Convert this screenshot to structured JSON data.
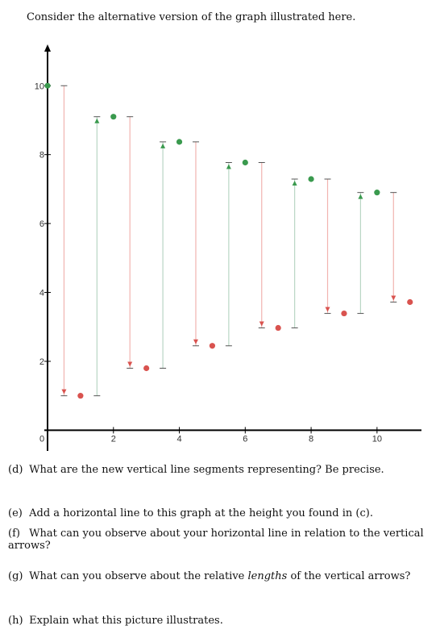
{
  "intro": "Consider the alternative version of the graph illustrated here.",
  "questions": [
    {
      "label": "(d)",
      "text": "What are the new vertical line segments representing? Be precise."
    },
    {
      "label": "(e)",
      "text": "Add a horizontal line to this graph at the height you found in (c)."
    },
    {
      "label": "(f)",
      "text": "What can you observe about your horizontal line in relation to the vertical arrows?"
    },
    {
      "label": "(g)",
      "text_before": "What can you observe about the relative ",
      "text_em": "lengths",
      "text_after": " of the vertical arrows?"
    },
    {
      "label": "(h)",
      "text": "Explain what this picture illustrates."
    }
  ],
  "chart_data": {
    "type": "scatter",
    "xlim": [
      0,
      11.3
    ],
    "ylim": [
      -0.6,
      11.2
    ],
    "x_ticks": [
      2,
      4,
      6,
      8,
      10
    ],
    "x_tick_labels": [
      "2",
      "4",
      "6",
      "8",
      "10"
    ],
    "y_ticks": [
      2,
      4,
      6,
      8,
      10
    ],
    "y_tick_labels": [
      "2",
      "4",
      "6",
      "8",
      "10"
    ],
    "origin_label": "0",
    "colors": {
      "green": "#3a9a4e",
      "red": "#d9534f",
      "green_line": "#b9d6c4",
      "red_line": "#f1b4b0",
      "axis": "#000000"
    },
    "series": [
      {
        "color": "green",
        "points": [
          [
            0,
            10
          ],
          [
            2,
            9.1
          ],
          [
            4,
            8.37
          ],
          [
            6,
            7.77
          ],
          [
            8,
            7.29
          ],
          [
            10,
            6.9
          ]
        ]
      },
      {
        "color": "red",
        "points": [
          [
            1,
            1
          ],
          [
            3,
            1.8
          ],
          [
            5,
            2.45
          ],
          [
            7,
            2.97
          ],
          [
            9,
            3.39
          ],
          [
            11,
            3.72
          ]
        ]
      }
    ],
    "arrows": [
      {
        "x": 0.5,
        "from": 10,
        "to": 1,
        "color": "red"
      },
      {
        "x": 1.5,
        "from": 1,
        "to": 9.1,
        "color": "green"
      },
      {
        "x": 2.5,
        "from": 9.1,
        "to": 1.8,
        "color": "red"
      },
      {
        "x": 3.5,
        "from": 1.8,
        "to": 8.37,
        "color": "green"
      },
      {
        "x": 4.5,
        "from": 8.37,
        "to": 2.45,
        "color": "red"
      },
      {
        "x": 5.5,
        "from": 2.45,
        "to": 7.77,
        "color": "green"
      },
      {
        "x": 6.5,
        "from": 7.77,
        "to": 2.97,
        "color": "red"
      },
      {
        "x": 7.5,
        "from": 2.97,
        "to": 7.29,
        "color": "green"
      },
      {
        "x": 8.5,
        "from": 7.29,
        "to": 3.39,
        "color": "red"
      },
      {
        "x": 9.5,
        "from": 3.39,
        "to": 6.9,
        "color": "green"
      },
      {
        "x": 10.5,
        "from": 6.9,
        "to": 3.72,
        "color": "red"
      }
    ]
  }
}
